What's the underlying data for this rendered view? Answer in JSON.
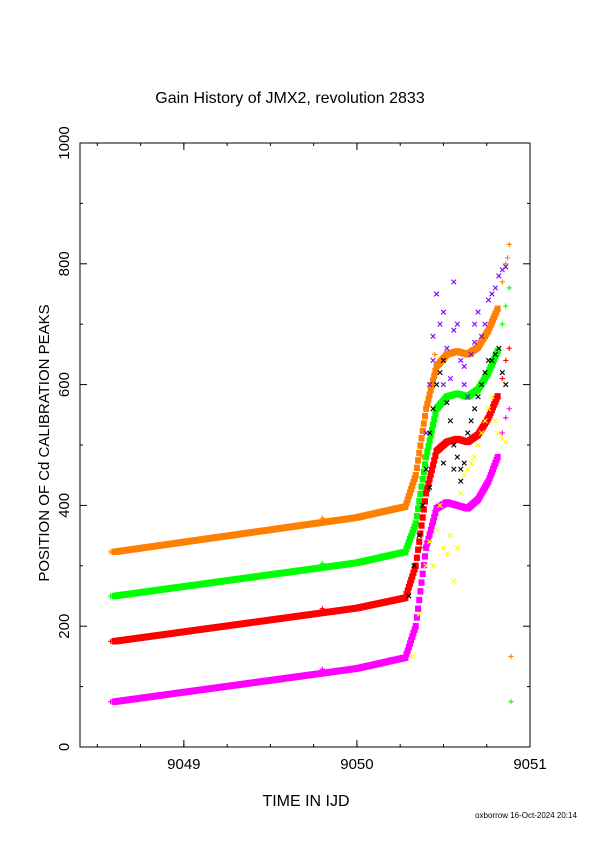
{
  "chart_data": {
    "type": "scatter",
    "title": "Gain History of JMX2, revolution 2833",
    "xlabel": "TIME IN IJD",
    "ylabel": "POSITION OF Cd CALIBRATION PEAKS",
    "xlim": [
      9048.4,
      9051.0
    ],
    "ylim": [
      0,
      1000
    ],
    "x_ticks": [
      9049,
      9050,
      9051
    ],
    "x_tick_labels": [
      "9049",
      "9050",
      "9051"
    ],
    "y_ticks": [
      0,
      200,
      400,
      600,
      800,
      1000
    ],
    "y_tick_labels": [
      "0",
      "200",
      "400",
      "600",
      "800",
      "1000"
    ],
    "grid": false,
    "footer": "oxborrow 16-Oct-2024 20:14",
    "series": [
      {
        "color": "#ff8000",
        "trend": [
          [
            9048.6,
            323
          ],
          [
            9050.0,
            380
          ],
          [
            9050.28,
            398
          ],
          [
            9050.34,
            450
          ],
          [
            9050.4,
            560
          ],
          [
            9050.46,
            630
          ],
          [
            9050.52,
            650
          ],
          [
            9050.58,
            655
          ],
          [
            9050.64,
            650
          ],
          [
            9050.7,
            662
          ],
          [
            9050.76,
            690
          ],
          [
            9050.82,
            730
          ]
        ],
        "scatter": [
          [
            9050.84,
            770
          ],
          [
            9050.86,
            800
          ],
          [
            9050.88,
            832
          ],
          [
            9050.87,
            810
          ],
          [
            9050.89,
            150
          ],
          [
            9050.45,
            650
          ],
          [
            9050.38,
            480
          ]
        ]
      },
      {
        "color": "#00ff00",
        "trend": [
          [
            9048.6,
            250
          ],
          [
            9050.0,
            305
          ],
          [
            9050.28,
            323
          ],
          [
            9050.34,
            370
          ],
          [
            9050.4,
            480
          ],
          [
            9050.46,
            560
          ],
          [
            9050.52,
            580
          ],
          [
            9050.58,
            585
          ],
          [
            9050.64,
            580
          ],
          [
            9050.7,
            592
          ],
          [
            9050.76,
            620
          ],
          [
            9050.82,
            660
          ]
        ],
        "scatter": [
          [
            9050.84,
            700
          ],
          [
            9050.86,
            730
          ],
          [
            9050.88,
            760
          ],
          [
            9050.89,
            75
          ],
          [
            9050.42,
            450
          ],
          [
            9050.36,
            400
          ]
        ]
      },
      {
        "color": "#ff0000",
        "trend": [
          [
            9048.6,
            175
          ],
          [
            9050.0,
            230
          ],
          [
            9050.28,
            247
          ],
          [
            9050.34,
            300
          ],
          [
            9050.4,
            420
          ],
          [
            9050.46,
            490
          ],
          [
            9050.52,
            505
          ],
          [
            9050.58,
            510
          ],
          [
            9050.64,
            505
          ],
          [
            9050.7,
            517
          ],
          [
            9050.76,
            545
          ],
          [
            9050.82,
            585
          ]
        ],
        "scatter": [
          [
            9050.84,
            610
          ],
          [
            9050.86,
            640
          ],
          [
            9050.88,
            660
          ],
          [
            9050.37,
            330
          ]
        ]
      },
      {
        "color": "#ff00ff",
        "trend": [
          [
            9048.6,
            75
          ],
          [
            9050.0,
            130
          ],
          [
            9050.28,
            148
          ],
          [
            9050.34,
            200
          ],
          [
            9050.4,
            330
          ],
          [
            9050.46,
            395
          ],
          [
            9050.52,
            405
          ],
          [
            9050.58,
            400
          ],
          [
            9050.64,
            395
          ],
          [
            9050.7,
            410
          ],
          [
            9050.76,
            440
          ],
          [
            9050.82,
            485
          ]
        ],
        "scatter": [
          [
            9050.84,
            520
          ],
          [
            9050.86,
            545
          ],
          [
            9050.88,
            560
          ]
        ]
      },
      {
        "color": "#000000",
        "scatter": [
          [
            9050.3,
            250
          ],
          [
            9050.33,
            300
          ],
          [
            9050.36,
            350
          ],
          [
            9050.38,
            400
          ],
          [
            9050.4,
            460
          ],
          [
            9050.42,
            520
          ],
          [
            9050.44,
            560
          ],
          [
            9050.46,
            600
          ],
          [
            9050.48,
            620
          ],
          [
            9050.5,
            640
          ],
          [
            9050.52,
            570
          ],
          [
            9050.54,
            540
          ],
          [
            9050.56,
            500
          ],
          [
            9050.58,
            480
          ],
          [
            9050.6,
            460
          ],
          [
            9050.62,
            470
          ],
          [
            9050.64,
            520
          ],
          [
            9050.66,
            540
          ],
          [
            9050.68,
            560
          ],
          [
            9050.7,
            580
          ],
          [
            9050.72,
            600
          ],
          [
            9050.74,
            620
          ],
          [
            9050.76,
            640
          ],
          [
            9050.78,
            640
          ],
          [
            9050.8,
            650
          ],
          [
            9050.82,
            660
          ],
          [
            9050.84,
            620
          ],
          [
            9050.86,
            600
          ],
          [
            9050.42,
            430
          ],
          [
            9050.5,
            470
          ],
          [
            9050.56,
            460
          ],
          [
            9050.6,
            440
          ]
        ]
      },
      {
        "color": "#8000ff",
        "scatter": [
          [
            9050.4,
            520
          ],
          [
            9050.42,
            600
          ],
          [
            9050.44,
            680
          ],
          [
            9050.46,
            750
          ],
          [
            9050.48,
            700
          ],
          [
            9050.5,
            720
          ],
          [
            9050.52,
            660
          ],
          [
            9050.54,
            610
          ],
          [
            9050.56,
            770
          ],
          [
            9050.58,
            700
          ],
          [
            9050.6,
            640
          ],
          [
            9050.62,
            600
          ],
          [
            9050.64,
            580
          ],
          [
            9050.66,
            650
          ],
          [
            9050.68,
            700
          ],
          [
            9050.7,
            720
          ],
          [
            9050.72,
            680
          ],
          [
            9050.74,
            700
          ],
          [
            9050.76,
            740
          ],
          [
            9050.78,
            750
          ],
          [
            9050.8,
            760
          ],
          [
            9050.82,
            780
          ],
          [
            9050.84,
            790
          ],
          [
            9050.86,
            795
          ],
          [
            9050.44,
            640
          ],
          [
            9050.5,
            600
          ],
          [
            9050.56,
            690
          ],
          [
            9050.62,
            630
          ],
          [
            9050.68,
            670
          ]
        ]
      },
      {
        "color": "#ffff00",
        "scatter": [
          [
            9050.32,
            150
          ],
          [
            9050.36,
            220
          ],
          [
            9050.4,
            300
          ],
          [
            9050.42,
            340
          ],
          [
            9050.44,
            300
          ],
          [
            9050.46,
            360
          ],
          [
            9050.48,
            400
          ],
          [
            9050.5,
            330
          ],
          [
            9050.52,
            320
          ],
          [
            9050.54,
            350
          ],
          [
            9050.56,
            275
          ],
          [
            9050.58,
            330
          ],
          [
            9050.6,
            420
          ],
          [
            9050.62,
            450
          ],
          [
            9050.64,
            460
          ],
          [
            9050.66,
            470
          ],
          [
            9050.68,
            480
          ],
          [
            9050.7,
            500
          ],
          [
            9050.72,
            520
          ],
          [
            9050.74,
            540
          ],
          [
            9050.76,
            560
          ],
          [
            9050.78,
            580
          ],
          [
            9050.8,
            540
          ],
          [
            9050.82,
            520
          ],
          [
            9050.84,
            510
          ],
          [
            9050.86,
            505
          ]
        ]
      }
    ],
    "series_markers": [
      {
        "color": "#ff8000",
        "x": 9049.8,
        "y": 379
      },
      {
        "color": "#00ff00",
        "x": 9049.8,
        "y": 304
      },
      {
        "color": "#ff0000",
        "x": 9049.8,
        "y": 229
      },
      {
        "color": "#ff00ff",
        "x": 9049.8,
        "y": 129
      }
    ]
  }
}
